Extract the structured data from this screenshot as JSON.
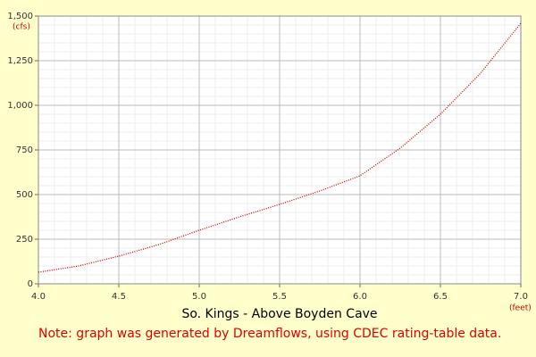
{
  "chart_data": {
    "type": "line",
    "title": "So. Kings - Above Boyden Cave",
    "note": "Note: graph was generated by Dreamflows, using CDEC rating-table data.",
    "x_label": "(feet)",
    "y_label": "(cfs)",
    "x": [
      4.0,
      4.25,
      4.5,
      4.75,
      5.0,
      5.25,
      5.5,
      5.75,
      6.0,
      6.25,
      6.5,
      6.75,
      7.0
    ],
    "series": [
      {
        "color": "#cc0000",
        "values": [
          65,
          100,
          155,
          220,
          300,
          375,
          445,
          520,
          605,
          760,
          950,
          1180,
          1460
        ]
      }
    ],
    "xlim": [
      4.0,
      7.0
    ],
    "xticks": [
      {
        "value": 4.0,
        "label": "4.0"
      },
      4.5,
      {
        "value": 5.0,
        "label": "5.0"
      },
      5.5,
      {
        "value": 6.0,
        "label": "6.0"
      },
      6.5,
      {
        "value": 7.0,
        "label": "7.0"
      }
    ],
    "ylim": [
      0,
      1500
    ],
    "yticks": [
      0,
      250,
      500,
      750,
      {
        "value": 1000,
        "label": "1,000"
      },
      {
        "value": 1250,
        "label": "1,250"
      },
      {
        "value": 1500,
        "label": "1,500"
      }
    ],
    "grid": true
  }
}
